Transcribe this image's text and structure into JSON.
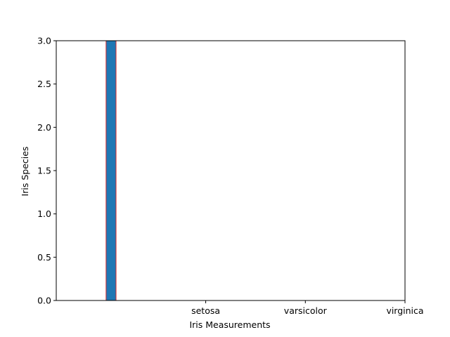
{
  "chart_data": {
    "type": "bar",
    "title": "",
    "xlabel": "Iris Measurements",
    "ylabel": "Iris Species",
    "xlim": [
      -0.5,
      3.0
    ],
    "ylim": [
      0,
      3.0
    ],
    "x_ticks": [
      {
        "value": 1.0,
        "label": "setosa"
      },
      {
        "value": 2.0,
        "label": "varsicolor"
      },
      {
        "value": 3.0,
        "label": "virginica"
      }
    ],
    "y_ticks": [
      "0.0",
      "0.5",
      "1.0",
      "1.5",
      "2.0",
      "2.5",
      "3.0"
    ],
    "bars": [
      {
        "x0": 0.0,
        "x1": 0.1,
        "value": 3
      },
      {
        "x0": 0.1,
        "x1": 0.2,
        "value": 0
      },
      {
        "x0": 0.2,
        "x1": 0.3,
        "value": 0
      },
      {
        "x0": 0.3,
        "x1": 0.4,
        "value": 0
      },
      {
        "x0": 0.4,
        "x1": 0.5,
        "value": 0
      },
      {
        "x0": 0.5,
        "x1": 0.6,
        "value": 0
      },
      {
        "x0": 0.6,
        "x1": 0.7,
        "value": 0
      }
    ],
    "baseline_segment": [
      -0.5,
      0.7
    ],
    "grid": false,
    "colors": {
      "bar_fill": "#1f77b4",
      "bar_edge": "#d62728",
      "axis": "#000000",
      "text": "#000000"
    }
  }
}
